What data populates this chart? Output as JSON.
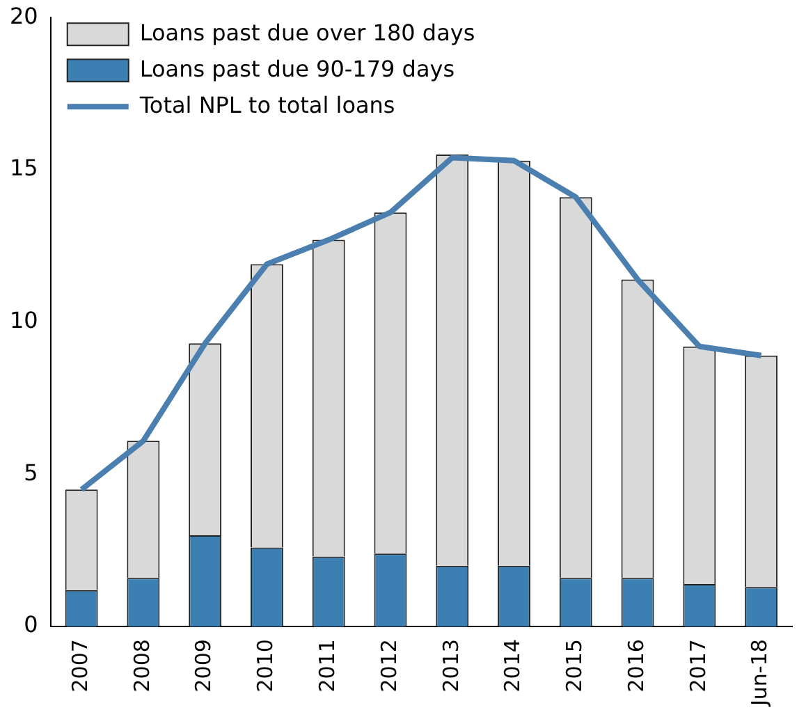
{
  "chart_data": {
    "type": "bar",
    "stacked": true,
    "categories": [
      "2007",
      "2008",
      "2009",
      "2010",
      "2011",
      "2012",
      "2013",
      "2014",
      "2015",
      "2016",
      "2017",
      "Jun-18"
    ],
    "series": [
      {
        "name": "Loans past due 90-179 days",
        "color": "#3b7fb3",
        "values": [
          1.2,
          1.6,
          3.0,
          2.6,
          2.3,
          2.4,
          2.0,
          2.0,
          1.6,
          1.6,
          1.4,
          1.3
        ]
      },
      {
        "name": "Loans past due over 180 days",
        "color": "#d9d9d9",
        "values": [
          3.3,
          4.5,
          6.3,
          9.3,
          10.4,
          11.2,
          13.5,
          13.3,
          12.5,
          9.8,
          7.8,
          7.6
        ]
      },
      {
        "name": "Total NPL to total loans",
        "type": "line",
        "color": "#4a7fb0",
        "values": [
          4.5,
          6.1,
          9.3,
          11.9,
          12.7,
          13.6,
          15.4,
          15.3,
          14.1,
          11.4,
          9.2,
          8.9
        ]
      }
    ],
    "ylim": [
      0,
      20
    ],
    "yticks": [
      0,
      5,
      10,
      15,
      20
    ],
    "grid": false,
    "legend": "top left",
    "marker": "none"
  }
}
